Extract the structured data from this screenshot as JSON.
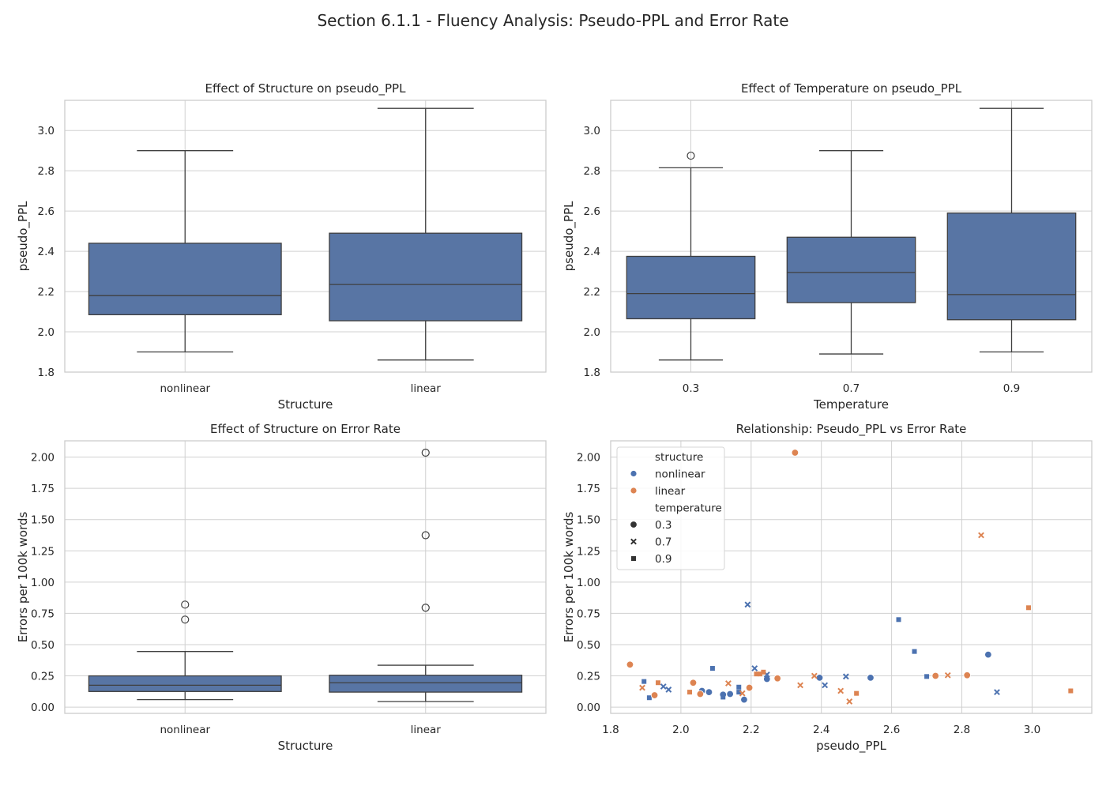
{
  "suptitle": "Section 6.1.1 - Fluency Analysis: Pseudo-PPL and Error Rate",
  "colors": {
    "box": "#5875a4",
    "nonlinear": "#4c72b0",
    "linear": "#dd8452",
    "grid": "#d0d0d0",
    "frame": "#cccccc",
    "line": "#3f3f3f"
  },
  "chart_data": [
    {
      "type": "box",
      "title": "Effect of Structure on pseudo_PPL",
      "xlabel": "Structure",
      "ylabel": "pseudo_PPL",
      "ylim": [
        1.8,
        3.15
      ],
      "yticks": [
        1.8,
        2.0,
        2.2,
        2.4,
        2.6,
        2.8,
        3.0
      ],
      "ytick_labels": [
        "1.8",
        "2.0",
        "2.2",
        "2.4",
        "2.6",
        "2.8",
        "3.0"
      ],
      "categories": [
        "nonlinear",
        "linear"
      ],
      "boxes": [
        {
          "whislo": 1.9,
          "q1": 2.085,
          "med": 2.18,
          "q3": 2.44,
          "whishi": 2.9,
          "fliers": []
        },
        {
          "whislo": 1.86,
          "q1": 2.055,
          "med": 2.235,
          "q3": 2.49,
          "whishi": 3.11,
          "fliers": []
        }
      ]
    },
    {
      "type": "box",
      "title": "Effect of Temperature on pseudo_PPL",
      "xlabel": "Temperature",
      "ylabel": "pseudo_PPL",
      "ylim": [
        1.8,
        3.15
      ],
      "yticks": [
        1.8,
        2.0,
        2.2,
        2.4,
        2.6,
        2.8,
        3.0
      ],
      "ytick_labels": [
        "1.8",
        "2.0",
        "2.2",
        "2.4",
        "2.6",
        "2.8",
        "3.0"
      ],
      "categories": [
        "0.3",
        "0.7",
        "0.9"
      ],
      "boxes": [
        {
          "whislo": 1.86,
          "q1": 2.065,
          "med": 2.19,
          "q3": 2.375,
          "whishi": 2.815,
          "fliers": [
            2.875
          ]
        },
        {
          "whislo": 1.89,
          "q1": 2.145,
          "med": 2.295,
          "q3": 2.47,
          "whishi": 2.9,
          "fliers": []
        },
        {
          "whislo": 1.9,
          "q1": 2.06,
          "med": 2.185,
          "q3": 2.59,
          "whishi": 3.11,
          "fliers": []
        }
      ]
    },
    {
      "type": "box",
      "title": "Effect of Structure on Error Rate",
      "xlabel": "Structure",
      "ylabel": "Errors per 100k words",
      "ylim": [
        -0.05,
        2.13
      ],
      "yticks": [
        0.0,
        0.25,
        0.5,
        0.75,
        1.0,
        1.25,
        1.5,
        1.75,
        2.0
      ],
      "ytick_labels": [
        "0.00",
        "0.25",
        "0.50",
        "0.75",
        "1.00",
        "1.25",
        "1.50",
        "1.75",
        "2.00"
      ],
      "categories": [
        "nonlinear",
        "linear"
      ],
      "boxes": [
        {
          "whislo": 0.06,
          "q1": 0.125,
          "med": 0.175,
          "q3": 0.25,
          "whishi": 0.445,
          "fliers": [
            0.82,
            0.7
          ]
        },
        {
          "whislo": 0.045,
          "q1": 0.12,
          "med": 0.195,
          "q3": 0.255,
          "whishi": 0.335,
          "fliers": [
            2.035,
            1.375,
            0.795
          ]
        }
      ]
    },
    {
      "type": "scatter",
      "title": "Relationship: Pseudo_PPL vs Error Rate",
      "xlabel": "pseudo_PPL",
      "ylabel": "Errors per 100k words",
      "xlim": [
        1.8,
        3.17
      ],
      "ylim": [
        -0.05,
        2.13
      ],
      "xticks": [
        1.8,
        2.0,
        2.2,
        2.4,
        2.6,
        2.8,
        3.0
      ],
      "xtick_labels": [
        "1.8",
        "2.0",
        "2.2",
        "2.4",
        "2.6",
        "2.8",
        "3.0"
      ],
      "yticks": [
        0.0,
        0.25,
        0.5,
        0.75,
        1.0,
        1.25,
        1.5,
        1.75,
        2.0
      ],
      "ytick_labels": [
        "0.00",
        "0.25",
        "0.50",
        "0.75",
        "1.00",
        "1.25",
        "1.50",
        "1.75",
        "2.00"
      ],
      "legend": {
        "placement": "upper-left",
        "hue_title": "structure",
        "hue_entries": [
          "nonlinear",
          "linear"
        ],
        "style_title": "temperature",
        "style_entries": [
          "0.3",
          "0.7",
          "0.9"
        ]
      },
      "points": [
        {
          "x": 2.06,
          "y": 0.13,
          "structure": "nonlinear",
          "temperature": "0.3"
        },
        {
          "x": 2.08,
          "y": 0.12,
          "structure": "nonlinear",
          "temperature": "0.3"
        },
        {
          "x": 2.12,
          "y": 0.1,
          "structure": "nonlinear",
          "temperature": "0.3"
        },
        {
          "x": 2.14,
          "y": 0.105,
          "structure": "nonlinear",
          "temperature": "0.3"
        },
        {
          "x": 2.18,
          "y": 0.06,
          "structure": "nonlinear",
          "temperature": "0.3"
        },
        {
          "x": 2.245,
          "y": 0.225,
          "structure": "nonlinear",
          "temperature": "0.3"
        },
        {
          "x": 2.395,
          "y": 0.235,
          "structure": "nonlinear",
          "temperature": "0.3"
        },
        {
          "x": 2.54,
          "y": 0.235,
          "structure": "nonlinear",
          "temperature": "0.3"
        },
        {
          "x": 2.875,
          "y": 0.42,
          "structure": "nonlinear",
          "temperature": "0.3"
        },
        {
          "x": 1.95,
          "y": 0.165,
          "structure": "nonlinear",
          "temperature": "0.7"
        },
        {
          "x": 1.965,
          "y": 0.14,
          "structure": "nonlinear",
          "temperature": "0.7"
        },
        {
          "x": 2.19,
          "y": 0.82,
          "structure": "nonlinear",
          "temperature": "0.7"
        },
        {
          "x": 2.21,
          "y": 0.31,
          "structure": "nonlinear",
          "temperature": "0.7"
        },
        {
          "x": 2.245,
          "y": 0.26,
          "structure": "nonlinear",
          "temperature": "0.7"
        },
        {
          "x": 2.41,
          "y": 0.175,
          "structure": "nonlinear",
          "temperature": "0.7"
        },
        {
          "x": 2.47,
          "y": 0.245,
          "structure": "nonlinear",
          "temperature": "0.7"
        },
        {
          "x": 2.9,
          "y": 0.12,
          "structure": "nonlinear",
          "temperature": "0.7"
        },
        {
          "x": 1.895,
          "y": 0.205,
          "structure": "nonlinear",
          "temperature": "0.9"
        },
        {
          "x": 1.91,
          "y": 0.075,
          "structure": "nonlinear",
          "temperature": "0.9"
        },
        {
          "x": 2.09,
          "y": 0.31,
          "structure": "nonlinear",
          "temperature": "0.9"
        },
        {
          "x": 2.12,
          "y": 0.08,
          "structure": "nonlinear",
          "temperature": "0.9"
        },
        {
          "x": 2.165,
          "y": 0.16,
          "structure": "nonlinear",
          "temperature": "0.9"
        },
        {
          "x": 2.165,
          "y": 0.12,
          "structure": "nonlinear",
          "temperature": "0.9"
        },
        {
          "x": 2.62,
          "y": 0.7,
          "structure": "nonlinear",
          "temperature": "0.9"
        },
        {
          "x": 2.665,
          "y": 0.445,
          "structure": "nonlinear",
          "temperature": "0.9"
        },
        {
          "x": 2.7,
          "y": 0.245,
          "structure": "nonlinear",
          "temperature": "0.9"
        },
        {
          "x": 1.855,
          "y": 0.34,
          "structure": "linear",
          "temperature": "0.3"
        },
        {
          "x": 1.925,
          "y": 0.095,
          "structure": "linear",
          "temperature": "0.3"
        },
        {
          "x": 2.035,
          "y": 0.195,
          "structure": "linear",
          "temperature": "0.3"
        },
        {
          "x": 2.055,
          "y": 0.105,
          "structure": "linear",
          "temperature": "0.3"
        },
        {
          "x": 2.195,
          "y": 0.155,
          "structure": "linear",
          "temperature": "0.3"
        },
        {
          "x": 2.275,
          "y": 0.23,
          "structure": "linear",
          "temperature": "0.3"
        },
        {
          "x": 2.325,
          "y": 2.035,
          "structure": "linear",
          "temperature": "0.3"
        },
        {
          "x": 2.725,
          "y": 0.25,
          "structure": "linear",
          "temperature": "0.3"
        },
        {
          "x": 2.815,
          "y": 0.255,
          "structure": "linear",
          "temperature": "0.3"
        },
        {
          "x": 1.89,
          "y": 0.155,
          "structure": "linear",
          "temperature": "0.7"
        },
        {
          "x": 2.135,
          "y": 0.19,
          "structure": "linear",
          "temperature": "0.7"
        },
        {
          "x": 2.175,
          "y": 0.11,
          "structure": "linear",
          "temperature": "0.7"
        },
        {
          "x": 2.34,
          "y": 0.175,
          "structure": "linear",
          "temperature": "0.7"
        },
        {
          "x": 2.38,
          "y": 0.25,
          "structure": "linear",
          "temperature": "0.7"
        },
        {
          "x": 2.455,
          "y": 0.13,
          "structure": "linear",
          "temperature": "0.7"
        },
        {
          "x": 2.48,
          "y": 0.045,
          "structure": "linear",
          "temperature": "0.7"
        },
        {
          "x": 2.76,
          "y": 0.255,
          "structure": "linear",
          "temperature": "0.7"
        },
        {
          "x": 2.855,
          "y": 1.375,
          "structure": "linear",
          "temperature": "0.7"
        },
        {
          "x": 1.935,
          "y": 0.195,
          "structure": "linear",
          "temperature": "0.9"
        },
        {
          "x": 2.025,
          "y": 0.12,
          "structure": "linear",
          "temperature": "0.9"
        },
        {
          "x": 2.215,
          "y": 0.265,
          "structure": "linear",
          "temperature": "0.9"
        },
        {
          "x": 2.225,
          "y": 0.265,
          "structure": "linear",
          "temperature": "0.9"
        },
        {
          "x": 2.235,
          "y": 0.28,
          "structure": "linear",
          "temperature": "0.9"
        },
        {
          "x": 2.5,
          "y": 0.11,
          "structure": "linear",
          "temperature": "0.9"
        },
        {
          "x": 2.99,
          "y": 0.795,
          "structure": "linear",
          "temperature": "0.9"
        },
        {
          "x": 3.11,
          "y": 0.13,
          "structure": "linear",
          "temperature": "0.9"
        }
      ]
    }
  ]
}
